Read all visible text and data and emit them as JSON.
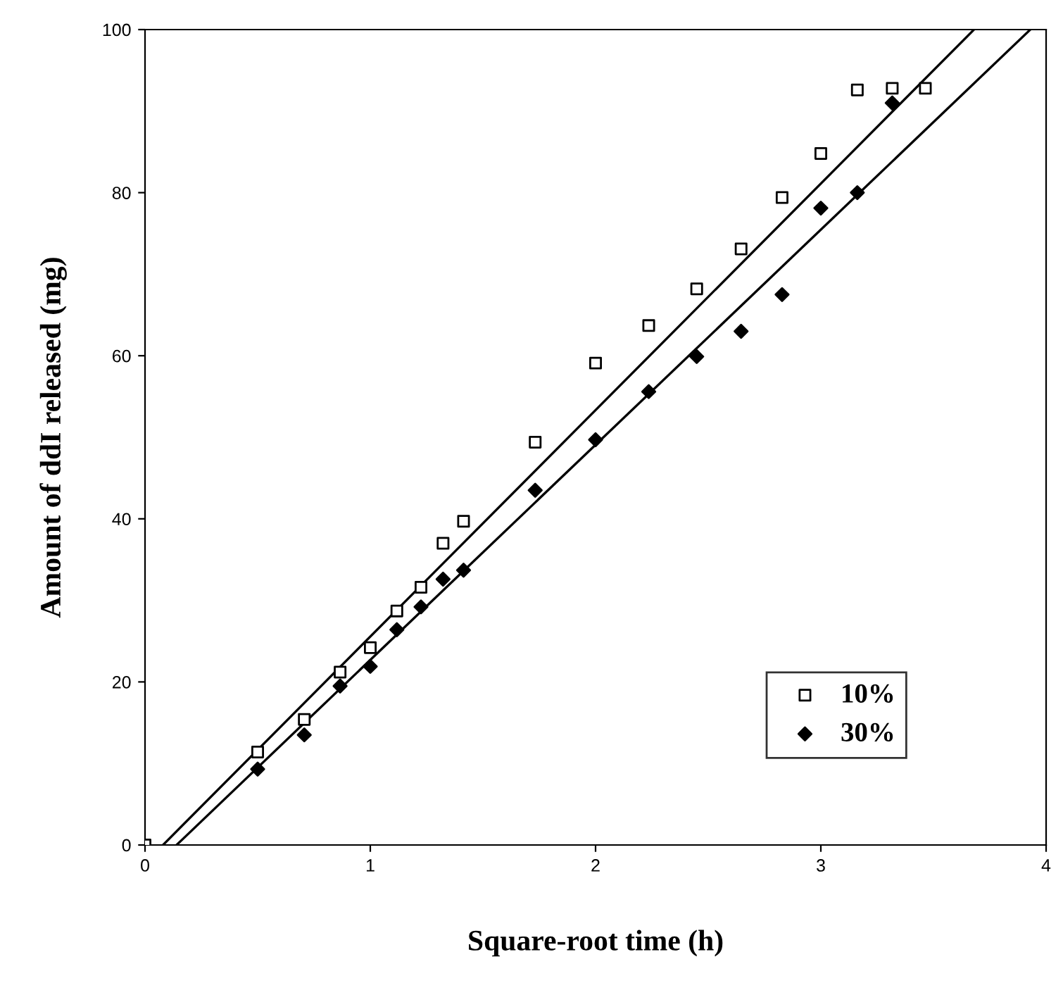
{
  "chart_data": {
    "type": "scatter",
    "xlabel": "Square-root time (h)",
    "ylabel": "Amount of ddI released (mg)",
    "xlim": [
      0,
      4
    ],
    "ylim": [
      0,
      100
    ],
    "xticks": [
      0,
      1,
      2,
      3,
      4
    ],
    "yticks": [
      0,
      20,
      40,
      60,
      80,
      100
    ],
    "grid": false,
    "legend": "bottom right",
    "series": [
      {
        "name": "10%",
        "color": "#000000",
        "marker": "square",
        "x": [
          0,
          0.5,
          0.707,
          0.866,
          1,
          1.118,
          1.225,
          1.323,
          1.414,
          1.732,
          2,
          2.236,
          2.449,
          2.646,
          2.828,
          3,
          3.162,
          3.317,
          3.464
        ],
        "values": [
          0,
          11.4,
          15.4,
          21.2,
          24.2,
          28.7,
          31.6,
          37,
          39.7,
          49.4,
          59.1,
          63.7,
          68.2,
          73.1,
          79.4,
          84.8,
          92.6,
          92.8,
          92.8
        ]
      },
      {
        "name": "30%",
        "color": "#000000",
        "marker": "diamond",
        "x": [
          0.5,
          0.707,
          0.866,
          1,
          1.118,
          1.225,
          1.323,
          1.414,
          1.732,
          2,
          2.236,
          2.449,
          2.646,
          2.828,
          3,
          3.162,
          3.317
        ],
        "values": [
          9.3,
          13.5,
          19.5,
          21.9,
          26.4,
          29.2,
          32.6,
          33.7,
          43.5,
          49.7,
          55.6,
          59.9,
          63,
          67.5,
          78.1,
          80,
          91
        ]
      },
      {
        "type": "line",
        "color": "#000000",
        "x": [
          0.08,
          3.68
        ],
        "values": [
          0,
          100
        ]
      },
      {
        "type": "line",
        "color": "#000000",
        "x": [
          0.14,
          3.93
        ],
        "values": [
          0,
          100
        ]
      }
    ]
  }
}
